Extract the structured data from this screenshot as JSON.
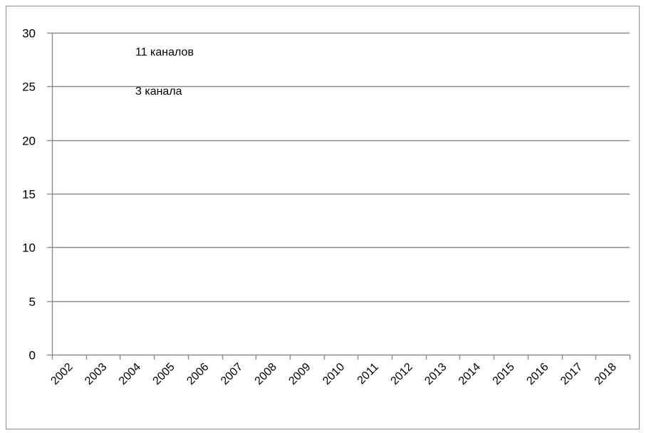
{
  "chart_data": {
    "type": "line",
    "title": "",
    "xlabel": "",
    "ylabel": "",
    "x": [
      "2002",
      "2003",
      "2004",
      "2005",
      "2006",
      "2007",
      "2008",
      "2009",
      "2010",
      "2011",
      "2012",
      "2013",
      "2014",
      "2015",
      "2016",
      "2017",
      "2018"
    ],
    "ylim": [
      0,
      30
    ],
    "yticks": [
      "0",
      "5",
      "10",
      "15",
      "20",
      "25",
      "30"
    ],
    "grid": true,
    "series": [],
    "annotations": [
      {
        "text": "11 каналов"
      },
      {
        "text": "3 канала"
      }
    ],
    "colors": {
      "grid": "#8c8c8c",
      "axis": "#8c8c8c",
      "frame": "#8c8c8c"
    }
  }
}
